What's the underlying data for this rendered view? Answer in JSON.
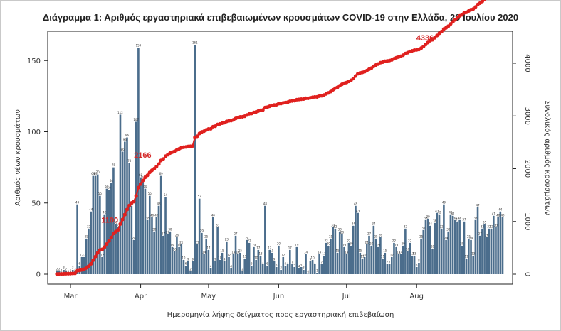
{
  "chart_data": {
    "type": "bar",
    "title": "Διάγραμμα 1: Αριθμός εργαστηριακά επιβεβαιωμένων κρουσμάτων COVID-19 στην Ελλάδα, 29 Ιουλίου 2020",
    "xlabel": "Ημερομηνία λήψης δείγματος προς εργαστηριακή επιβεβαίωση",
    "ylabel": "Αριθμός νέων κρουσμάτων",
    "y2label": "Συνολικός αριθμός κρουσμάτων",
    "x_tick_labels": [
      "Mar",
      "Apr",
      "May",
      "Jun",
      "Jul",
      "Aug"
    ],
    "y_ticks": [
      0,
      50,
      100,
      150
    ],
    "y2_ticks": [
      0,
      1000,
      2000,
      3000,
      4000
    ],
    "ylim": [
      0,
      165
    ],
    "y2lim": [
      0,
      4400
    ],
    "start_date": "2020-02-24",
    "bar_color": "#4b6d8c",
    "line_color": "#e0201e",
    "series": [
      {
        "name": "Νέα κρούσματα",
        "type": "bar",
        "values": [
          2,
          2,
          1,
          3,
          2,
          0,
          1,
          3,
          2,
          49,
          6,
          12,
          12,
          25,
          32,
          44,
          69,
          69,
          70,
          55,
          12,
          42,
          60,
          59,
          64,
          75,
          35,
          33,
          112,
          86,
          93,
          96,
          78,
          48,
          24,
          107,
          159,
          68,
          67,
          60,
          38,
          55,
          40,
          30,
          40,
          48,
          69,
          27,
          54,
          28,
          30,
          19,
          16,
          26,
          19,
          21,
          10,
          6,
          9,
          2,
          9,
          161,
          21,
          53,
          29,
          14,
          25,
          17,
          4,
          40,
          9,
          33,
          10,
          15,
          9,
          23,
          12,
          4,
          14,
          27,
          14,
          15,
          2,
          11,
          24,
          22,
          6,
          19,
          10,
          17,
          13,
          7,
          48,
          6,
          17,
          15,
          9,
          5,
          20,
          3,
          12,
          6,
          7,
          17,
          7,
          5,
          19,
          4,
          5,
          3,
          14,
          0,
          9,
          10,
          7,
          1,
          14,
          7,
          13,
          22,
          20,
          25,
          33,
          32,
          15,
          30,
          28,
          19,
          14,
          22,
          20,
          34,
          48,
          43,
          15,
          11,
          12,
          21,
          27,
          20,
          34,
          25,
          19,
          26,
          11,
          15,
          7,
          7,
          12,
          22,
          19,
          14,
          14,
          20,
          32,
          16,
          22,
          13,
          13,
          5,
          8,
          25,
          31,
          38,
          39,
          34,
          18,
          36,
          43,
          42,
          32,
          49,
          24,
          30,
          42,
          41,
          38,
          37,
          38,
          20,
          37,
          11,
          25,
          24,
          13,
          38,
          47,
          27,
          32,
          35,
          26,
          32,
          32,
          41,
          33,
          40,
          44,
          40
        ]
      },
      {
        "name": "Συνολικά κρούσματα",
        "type": "line",
        "labeled_points": [
          {
            "label": "2166",
            "value": 2166
          },
          {
            "label": "4336",
            "value": 4336
          },
          {
            "label": "1100",
            "value": 1100
          }
        ]
      }
    ],
    "grid": false,
    "legend": "none"
  }
}
